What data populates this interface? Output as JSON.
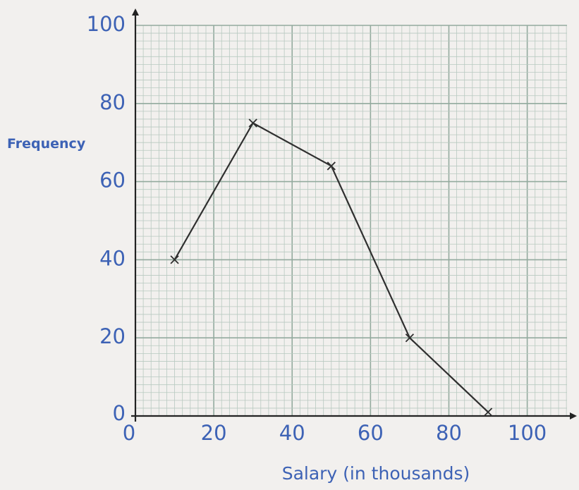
{
  "chart_data": {
    "type": "line",
    "title": "",
    "xlabel": "Salary (in thousands)",
    "ylabel": "Frequency",
    "xlim": [
      0,
      110
    ],
    "ylim": [
      0,
      100
    ],
    "x_ticks": [
      "0",
      "20",
      "40",
      "60",
      "80",
      "100"
    ],
    "y_ticks": [
      "0",
      "20",
      "40",
      "60",
      "80",
      "100"
    ],
    "grid": true,
    "series": [
      {
        "x": [
          10,
          30,
          50,
          70,
          90
        ],
        "y": [
          40,
          75,
          64,
          20,
          1
        ]
      }
    ]
  },
  "colors": {
    "text": "#3d62b5",
    "line": "#2f2f2f",
    "grid_minor": "#b8c9c0",
    "grid_major": "#93aa9e",
    "background": "#f2f0ee"
  }
}
